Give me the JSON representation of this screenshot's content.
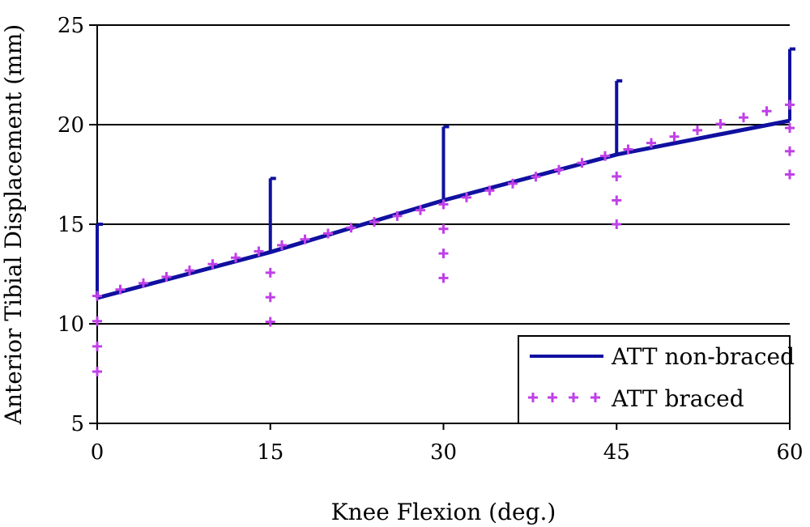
{
  "chart_data": {
    "type": "line",
    "title": "",
    "xlabel": "Knee Flexion (deg.)",
    "ylabel": "Anterior Tibial Displacement (mm)",
    "xlim": [
      0,
      60
    ],
    "ylim": [
      5,
      25
    ],
    "x_ticks": [
      "0",
      "15",
      "30",
      "45",
      "60"
    ],
    "y_ticks": [
      "5",
      "10",
      "15",
      "20",
      "25"
    ],
    "grid": "horizontal",
    "legend_position": "bottom-right",
    "series": [
      {
        "name": "ATT non-braced",
        "color": "#1010a0",
        "style": "solid",
        "line": [
          [
            0,
            11.3
          ],
          [
            15,
            13.6
          ],
          [
            30,
            16.2
          ],
          [
            45,
            18.5
          ],
          [
            60,
            20.2
          ]
        ],
        "error_bars": [
          {
            "x": 0,
            "value": 11.3,
            "upper": 15.0
          },
          {
            "x": 15,
            "value": 13.6,
            "upper": 17.3
          },
          {
            "x": 30,
            "value": 16.2,
            "upper": 19.9
          },
          {
            "x": 45,
            "value": 18.5,
            "upper": 22.2
          },
          {
            "x": 60,
            "value": 20.2,
            "upper": 23.8
          }
        ]
      },
      {
        "name": "ATT braced",
        "color": "#c040e8",
        "style": "plus-markers",
        "line": [
          [
            0,
            11.4
          ],
          [
            15,
            13.8
          ],
          [
            30,
            16.0
          ],
          [
            45,
            18.6
          ],
          [
            60,
            21.0
          ]
        ],
        "error_bars": [
          {
            "x": 0,
            "value": 11.4,
            "lower": 7.6
          },
          {
            "x": 15,
            "value": 13.8,
            "lower": 10.1
          },
          {
            "x": 30,
            "value": 16.0,
            "lower": 12.3
          },
          {
            "x": 45,
            "value": 18.6,
            "lower": 15.0
          },
          {
            "x": 60,
            "value": 21.0,
            "lower": 17.5
          }
        ]
      }
    ]
  }
}
